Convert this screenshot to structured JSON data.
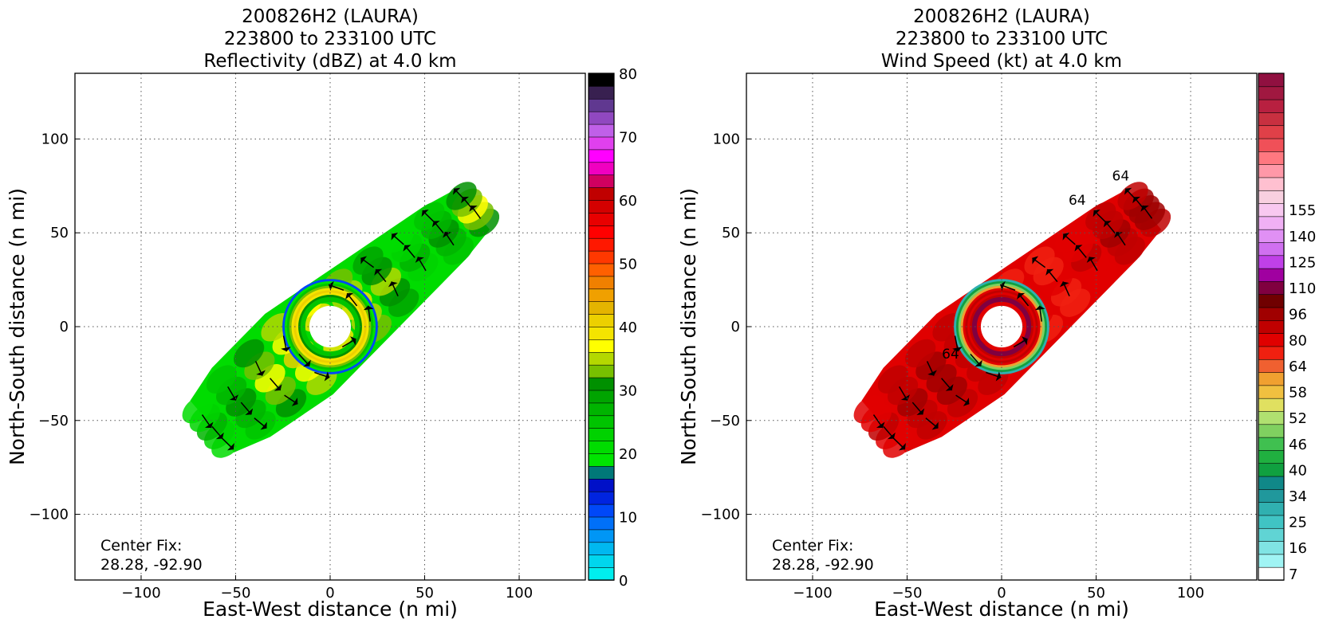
{
  "chart_data": [
    {
      "type": "heatmap",
      "id": "reflectivity",
      "title_lines": [
        "200826H2 (LAURA)",
        "223800 to 233100 UTC",
        "Reflectivity (dBZ) at 4.0 km"
      ],
      "xlabel": "East-West distance (n mi)",
      "ylabel": "North-South distance (n mi)",
      "xlim": [
        -135,
        135
      ],
      "ylim": [
        -135,
        135
      ],
      "xticks": [
        -100,
        -50,
        0,
        50,
        100
      ],
      "yticks": [
        -100,
        -50,
        0,
        50,
        100
      ],
      "grid": true,
      "annotation": [
        "Center Fix:",
        "28.28, -92.90"
      ],
      "colorbar": {
        "min": 0,
        "max": 80,
        "tick_values": [
          0,
          10,
          20,
          30,
          40,
          50,
          60,
          70,
          80
        ],
        "tick_labels": [
          "0",
          "10",
          "20",
          "30",
          "40",
          "50",
          "60",
          "70",
          "80"
        ],
        "colors": [
          "#00eeee",
          "#00d6ee",
          "#00b8f0",
          "#0096f5",
          "#0070f8",
          "#0048f8",
          "#0024e0",
          "#0010c8",
          "#007878",
          "#00e400",
          "#00dc00",
          "#00d200",
          "#00c400",
          "#00b400",
          "#00a400",
          "#009000",
          "#78c000",
          "#b4d800",
          "#ffff00",
          "#f4e400",
          "#ecd000",
          "#e4b400",
          "#f0a000",
          "#f08000",
          "#ff6000",
          "#ff3800",
          "#ff1800",
          "#ff0000",
          "#e80000",
          "#d40000",
          "#c00000",
          "#d00060",
          "#f000c0",
          "#ff00ff",
          "#e040ee",
          "#c060e8",
          "#9048c0",
          "#603890",
          "#382050",
          "#000000"
        ]
      },
      "core_mean_values": [
        10,
        18,
        24,
        33,
        38,
        40,
        38,
        30,
        24
      ],
      "band_mean_values": [
        20,
        24,
        30,
        34,
        36,
        32,
        28
      ]
    },
    {
      "type": "heatmap",
      "id": "wind-speed",
      "title_lines": [
        "200826H2 (LAURA)",
        "223800 to 233100 UTC",
        "Wind Speed (kt) at 4.0 km"
      ],
      "xlabel": "East-West distance (n mi)",
      "ylabel": "North-South distance (n mi)",
      "xlim": [
        -135,
        135
      ],
      "ylim": [
        -135,
        135
      ],
      "xticks": [
        -100,
        -50,
        0,
        50,
        100
      ],
      "yticks": [
        -100,
        -50,
        0,
        50,
        100
      ],
      "grid": true,
      "annotation": [
        "Center Fix:",
        "28.28, -92.90"
      ],
      "contour_labels": [
        "64",
        "64",
        "64"
      ],
      "colorbar": {
        "tick_labels": [
          "7",
          "16",
          "25",
          "34",
          "40",
          "46",
          "52",
          "58",
          "64",
          "80",
          "96",
          "110",
          "125",
          "140",
          "155"
        ],
        "tick_bins": [
          0,
          2,
          4,
          6,
          8,
          10,
          12,
          14,
          16,
          18,
          20,
          22,
          24,
          26,
          28
        ],
        "colors": [
          "#ffffff",
          "#a0f4f4",
          "#80e4e4",
          "#60d4d4",
          "#40c4c4",
          "#30b0b0",
          "#20989c",
          "#108888",
          "#10a040",
          "#20b040",
          "#40c050",
          "#80d060",
          "#b0e070",
          "#e0e060",
          "#f0c040",
          "#f0a030",
          "#f06030",
          "#f02010",
          "#e00000",
          "#c00000",
          "#a00000",
          "#700000",
          "#800040",
          "#a000a0",
          "#c040e8",
          "#d070f0",
          "#e090f4",
          "#f0b0f4",
          "#f8c8f0",
          "#f8d0e0",
          "#ffc0d0",
          "#ff98a8",
          "#ff7880",
          "#f05058",
          "#e04048",
          "#c83040",
          "#b82040",
          "#a01840",
          "#901040"
        ]
      },
      "core_mean_values": [
        30,
        40,
        48,
        60,
        76,
        88,
        80,
        90,
        110
      ],
      "band_mean_values": [
        80,
        86,
        90,
        84,
        80,
        74,
        70
      ]
    }
  ]
}
